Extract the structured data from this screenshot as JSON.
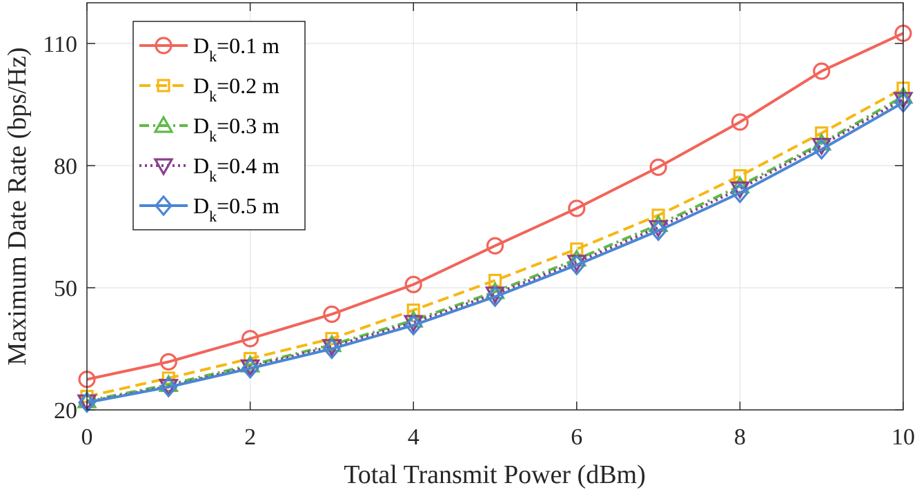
{
  "chart_data": {
    "type": "line",
    "title": "",
    "xlabel": "Total Transmit Power (dBm)",
    "ylabel": "Maximum Date Rate (bps/Hz)",
    "xlim": [
      0,
      10
    ],
    "ylim": [
      20,
      120
    ],
    "xticks": [
      0,
      2,
      4,
      6,
      8,
      10
    ],
    "yticks": [
      20,
      50,
      80,
      110
    ],
    "grid": true,
    "legend_position": "top-left",
    "x": [
      0,
      1,
      2,
      3,
      4,
      5,
      6,
      7,
      8,
      9,
      10
    ],
    "series": [
      {
        "name": "D_k=0.1 m",
        "legend_main": "D",
        "legend_sub": "k",
        "legend_rest": "=0.1 m",
        "color": "#f2645a",
        "marker": "circle",
        "linestyle": "solid",
        "values": [
          27.5,
          31.8,
          37.5,
          43.5,
          50.8,
          60.3,
          69.5,
          79.6,
          90.7,
          103.2,
          112.5
        ]
      },
      {
        "name": "D_k=0.2 m",
        "legend_main": "D",
        "legend_sub": "k",
        "legend_rest": "=0.2 m",
        "color": "#f5b814",
        "marker": "square",
        "linestyle": "dashed",
        "values": [
          23.3,
          27.8,
          32.6,
          37.5,
          44.5,
          51.8,
          59.5,
          67.8,
          77.5,
          88.0,
          99.0
        ]
      },
      {
        "name": "D_k=0.3 m",
        "legend_main": "D",
        "legend_sub": "k",
        "legend_rest": "=0.3 m",
        "color": "#5fba46",
        "marker": "triangle-up",
        "linestyle": "dashdot",
        "values": [
          22.2,
          26.2,
          31.0,
          36.0,
          42.0,
          49.0,
          57.0,
          65.5,
          75.0,
          85.5,
          97.0
        ]
      },
      {
        "name": "D_k=0.4 m",
        "legend_main": "D",
        "legend_sub": "k",
        "legend_rest": "=0.4 m",
        "color": "#8a3f8e",
        "marker": "triangle-down",
        "linestyle": "dotted",
        "values": [
          22.0,
          25.8,
          30.6,
          35.6,
          41.5,
          48.5,
          56.3,
          64.8,
          74.3,
          85.0,
          96.3
        ]
      },
      {
        "name": "D_k=0.5 m",
        "legend_main": "D",
        "legend_sub": "k",
        "legend_rest": "=0.5 m",
        "color": "#4a86d4",
        "marker": "diamond",
        "linestyle": "solid",
        "values": [
          21.8,
          25.6,
          30.2,
          35.0,
          40.8,
          47.8,
          55.6,
          64.0,
          73.3,
          84.0,
          95.5
        ]
      }
    ]
  }
}
